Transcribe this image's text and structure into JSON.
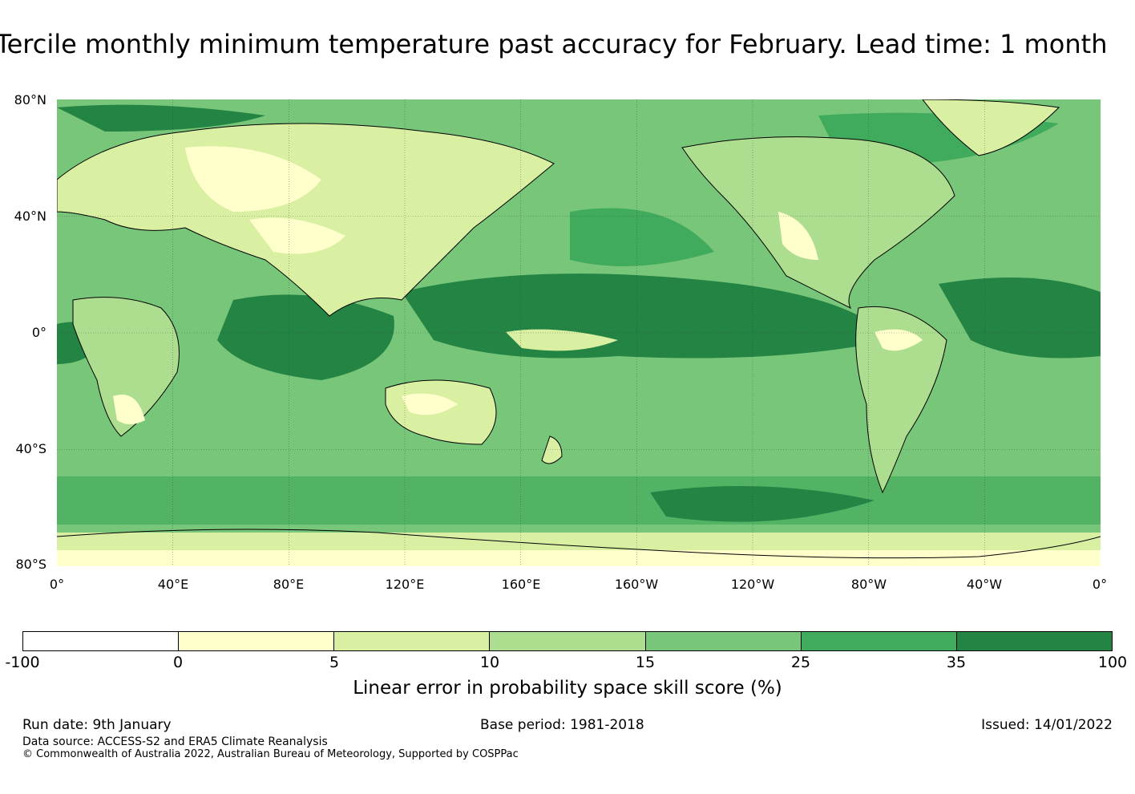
{
  "title": "Tercile monthly minimum temperature past accuracy for February. Lead time: 1 month",
  "map": {
    "lat_labels": [
      "80°N",
      "40°N",
      "0°",
      "40°S",
      "80°S"
    ],
    "lon_labels": [
      "0°",
      "40°E",
      "80°E",
      "120°E",
      "160°E",
      "160°W",
      "120°W",
      "80°W",
      "40°W",
      "0°"
    ]
  },
  "colorbar": {
    "ticks": [
      "-100",
      "0",
      "5",
      "10",
      "15",
      "25",
      "35",
      "100"
    ],
    "colors": [
      "#ffffff",
      "#ffffcc",
      "#d9f0a3",
      "#addd8e",
      "#78c679",
      "#41ab5d",
      "#238443"
    ],
    "label": "Linear error in probability space skill score (%)"
  },
  "footer": {
    "run_date": "Run date: 9th January",
    "base_period": "Base period: 1981-2018",
    "issued": "Issued: 14/01/2022",
    "data_source": "Data source: ACCESS-S2 and ERA5 Climate Reanalysis",
    "copyright": "© Commonwealth of Australia 2022, Australian Bureau of Meteorology, Supported by COSPPac"
  }
}
